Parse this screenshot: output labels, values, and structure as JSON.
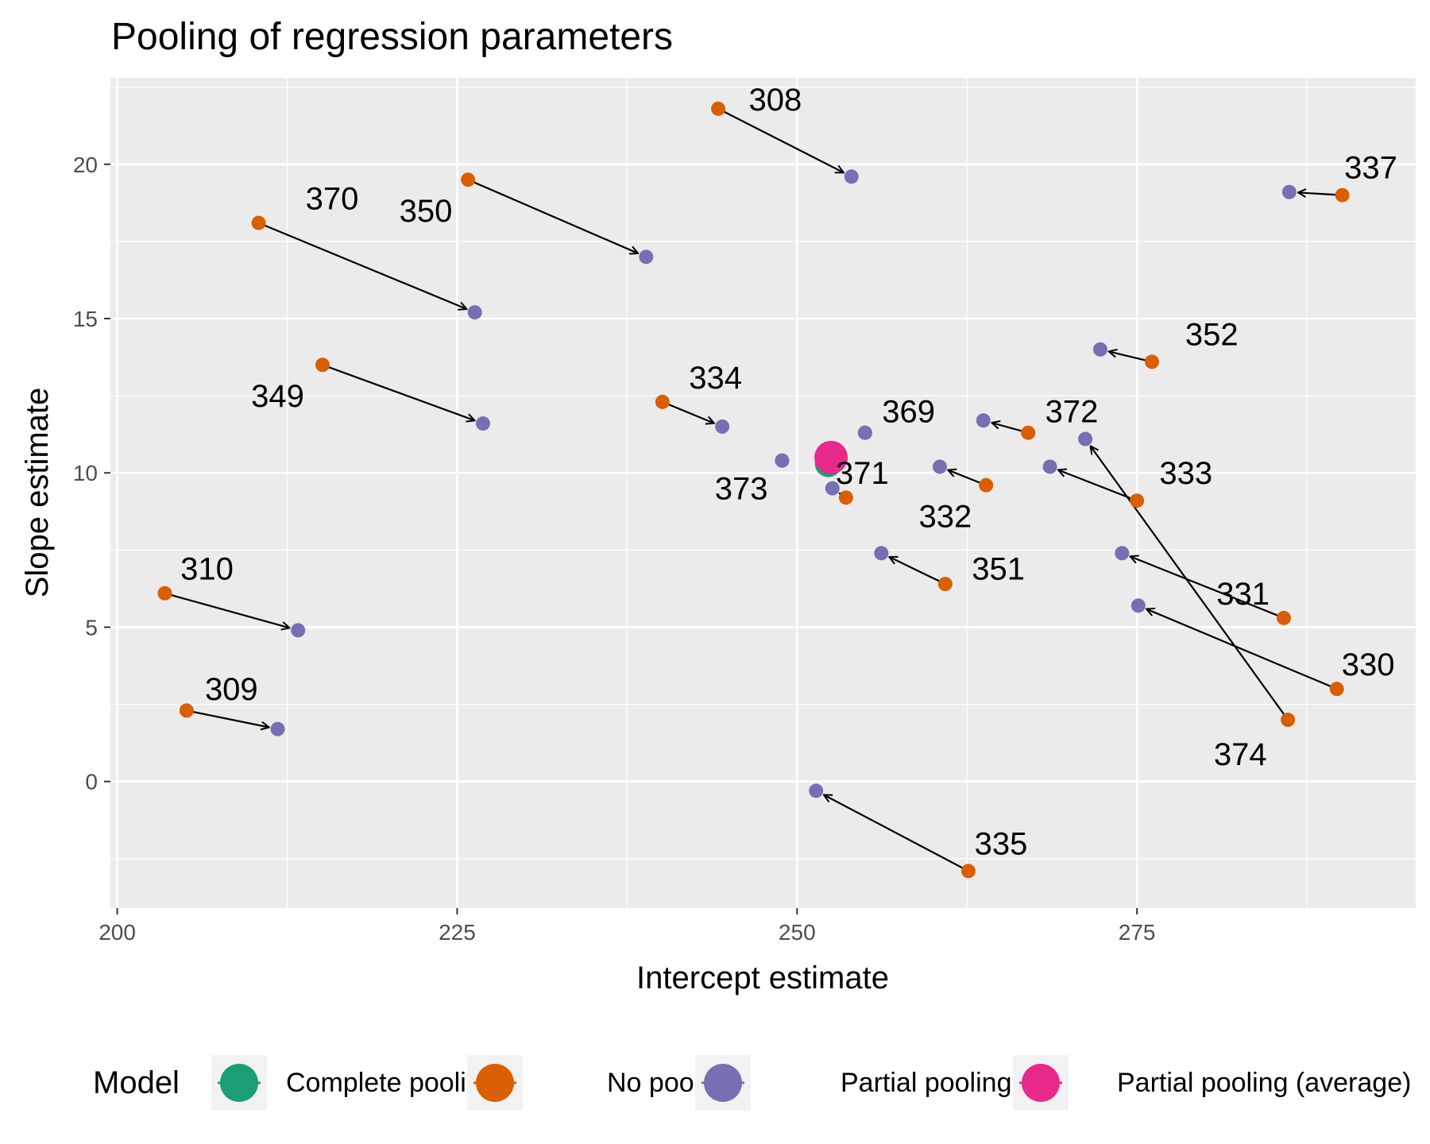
{
  "chart_data": {
    "type": "scatter",
    "title": "Pooling of regression parameters",
    "xlabel": "Intercept estimate",
    "ylabel": "Slope estimate",
    "xlim": [
      199.5,
      295.5
    ],
    "ylim": [
      -4.1,
      22.8
    ],
    "x_ticks": [
      200,
      225,
      250,
      275
    ],
    "y_ticks": [
      0,
      5,
      10,
      15,
      20
    ],
    "grid": true,
    "legend": {
      "title": "Model",
      "position": "bottom",
      "entries": [
        {
          "label": "Complete pooling",
          "color": "#1b9e77"
        },
        {
          "label": "No pooling",
          "color": "#d95f02"
        },
        {
          "label": "Partial pooling",
          "color": "#7570b3"
        },
        {
          "label": "Partial pooling (average)",
          "color": "#e7298a"
        }
      ]
    },
    "series": [
      {
        "name": "No pooling",
        "color": "#d95f02",
        "points": [
          {
            "label": "308",
            "x": 244.2,
            "y": 21.8
          },
          {
            "label": "309",
            "x": 205.1,
            "y": 2.3
          },
          {
            "label": "310",
            "x": 203.5,
            "y": 6.1
          },
          {
            "label": "330",
            "x": 289.7,
            "y": 3.0
          },
          {
            "label": "331",
            "x": 285.8,
            "y": 5.3
          },
          {
            "label": "332",
            "x": 263.9,
            "y": 9.6
          },
          {
            "label": "333",
            "x": 275.0,
            "y": 9.1
          },
          {
            "label": "334",
            "x": 240.1,
            "y": 12.3
          },
          {
            "label": "335",
            "x": 262.6,
            "y": -2.9
          },
          {
            "label": "337",
            "x": 290.1,
            "y": 19.0
          },
          {
            "label": "349",
            "x": 215.1,
            "y": 13.5
          },
          {
            "label": "350",
            "x": 225.8,
            "y": 19.5
          },
          {
            "label": "351",
            "x": 260.9,
            "y": 6.4
          },
          {
            "label": "352",
            "x": 276.1,
            "y": 13.6
          },
          {
            "label": "369",
            "x": 255.0,
            "y": 11.3
          },
          {
            "label": "370",
            "x": 210.4,
            "y": 18.1
          },
          {
            "label": "371",
            "x": 253.6,
            "y": 9.2
          },
          {
            "label": "372",
            "x": 267.0,
            "y": 11.3
          },
          {
            "label": "373",
            "x": 248.9,
            "y": 10.4
          },
          {
            "label": "374",
            "x": 286.1,
            "y": 2.0
          }
        ]
      },
      {
        "name": "Partial pooling",
        "color": "#7570b3",
        "points": [
          {
            "label": "308",
            "x": 254.0,
            "y": 19.6
          },
          {
            "label": "309",
            "x": 211.8,
            "y": 1.7
          },
          {
            "label": "310",
            "x": 213.3,
            "y": 4.9
          },
          {
            "label": "330",
            "x": 275.1,
            "y": 5.7
          },
          {
            "label": "331",
            "x": 273.9,
            "y": 7.4
          },
          {
            "label": "332",
            "x": 260.5,
            "y": 10.2
          },
          {
            "label": "333",
            "x": 268.6,
            "y": 10.2
          },
          {
            "label": "334",
            "x": 244.5,
            "y": 11.5
          },
          {
            "label": "335",
            "x": 251.4,
            "y": -0.3
          },
          {
            "label": "337",
            "x": 286.2,
            "y": 19.1
          },
          {
            "label": "349",
            "x": 226.9,
            "y": 11.6
          },
          {
            "label": "350",
            "x": 238.9,
            "y": 17.0
          },
          {
            "label": "351",
            "x": 256.2,
            "y": 7.4
          },
          {
            "label": "352",
            "x": 272.3,
            "y": 14.0
          },
          {
            "label": "369",
            "x": 255.0,
            "y": 11.3
          },
          {
            "label": "370",
            "x": 226.3,
            "y": 15.2
          },
          {
            "label": "371",
            "x": 252.6,
            "y": 9.5
          },
          {
            "label": "372",
            "x": 263.7,
            "y": 11.7
          },
          {
            "label": "373",
            "x": 248.9,
            "y": 10.4
          },
          {
            "label": "374",
            "x": 271.2,
            "y": 11.1
          }
        ]
      },
      {
        "name": "Complete pooling",
        "color": "#1b9e77",
        "points": [
          {
            "x": 252.3,
            "y": 10.3
          }
        ]
      },
      {
        "name": "Partial pooling (average)",
        "color": "#e7298a",
        "points": [
          {
            "x": 252.5,
            "y": 10.5
          }
        ]
      }
    ],
    "labels": [
      {
        "text": "308",
        "x": 248.4,
        "y": 22.1
      },
      {
        "text": "337",
        "x": 292.2,
        "y": 19.9
      },
      {
        "text": "370",
        "x": 215.8,
        "y": 18.9
      },
      {
        "text": "350",
        "x": 222.7,
        "y": 18.5
      },
      {
        "text": "352",
        "x": 280.5,
        "y": 14.5
      },
      {
        "text": "334",
        "x": 244.0,
        "y": 13.1
      },
      {
        "text": "349",
        "x": 211.8,
        "y": 12.5
      },
      {
        "text": "369",
        "x": 258.2,
        "y": 12.0
      },
      {
        "text": "372",
        "x": 270.2,
        "y": 12.0
      },
      {
        "text": "333",
        "x": 278.6,
        "y": 10.0
      },
      {
        "text": "371",
        "x": 254.8,
        "y": 10.0
      },
      {
        "text": "373",
        "x": 245.9,
        "y": 9.5
      },
      {
        "text": "332",
        "x": 260.9,
        "y": 8.6
      },
      {
        "text": "351",
        "x": 264.8,
        "y": 6.9
      },
      {
        "text": "331",
        "x": 282.8,
        "y": 6.1
      },
      {
        "text": "310",
        "x": 206.6,
        "y": 6.9
      },
      {
        "text": "330",
        "x": 292.0,
        "y": 3.8
      },
      {
        "text": "309",
        "x": 208.4,
        "y": 3.0
      },
      {
        "text": "374",
        "x": 282.6,
        "y": 0.9
      },
      {
        "text": "335",
        "x": 265.0,
        "y": -2.0
      }
    ]
  }
}
